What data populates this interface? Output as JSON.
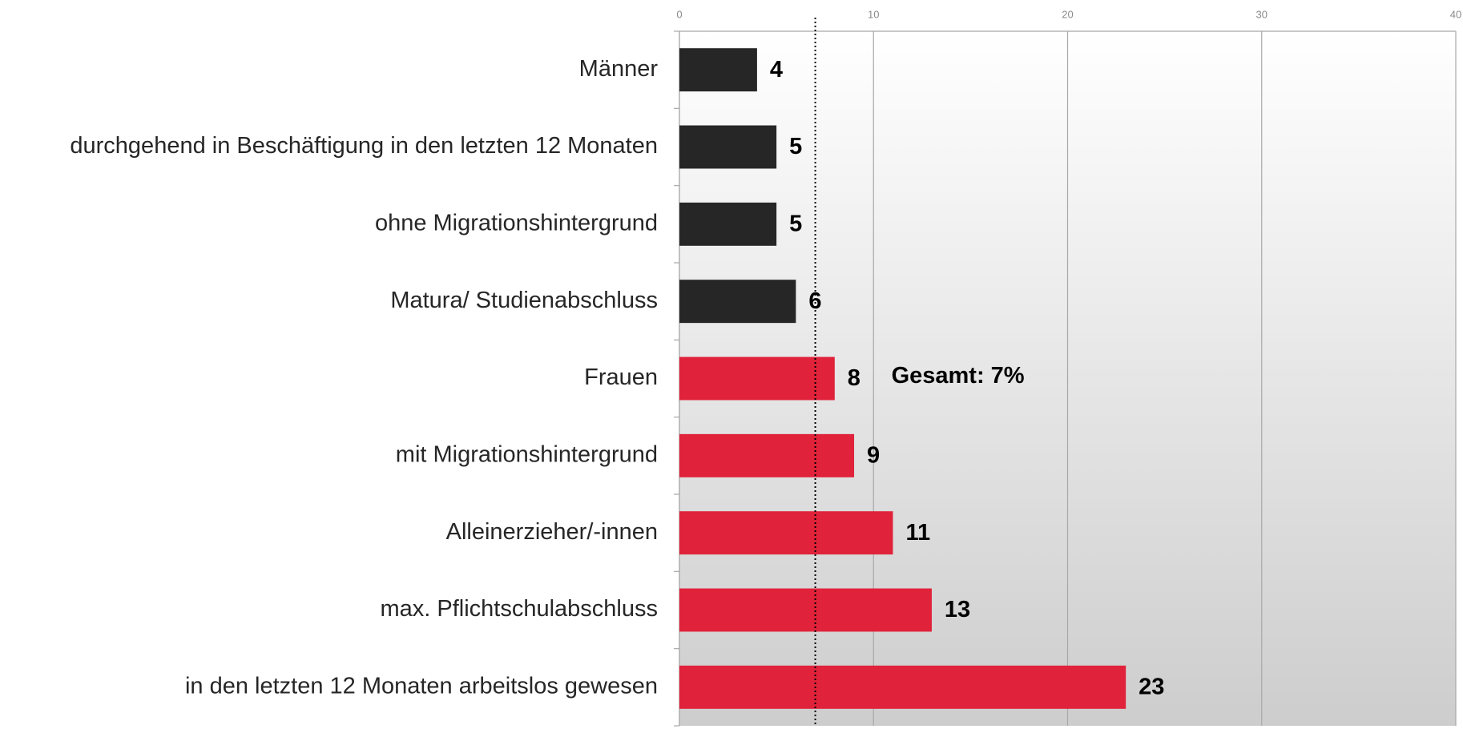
{
  "chart_data": {
    "type": "hbar",
    "categories": [
      "Männer",
      "durchgehend in Beschäftigung in den letzten 12 Monaten",
      "ohne Migrationshintergrund",
      "Matura/ Studienabschluss",
      "Frauen",
      "mit Migrationshintergrund",
      "Alleinerzieher/-innen",
      "max. Pflichtschulabschluss",
      "in den letzten 12 Monaten arbeitslos gewesen"
    ],
    "values": [
      4,
      5,
      5,
      6,
      8,
      9,
      11,
      13,
      23
    ],
    "colors": [
      "#262626",
      "#262626",
      "#262626",
      "#262626",
      "#e0223a",
      "#e0223a",
      "#e0223a",
      "#e0223a",
      "#e0223a"
    ],
    "xlim": [
      0,
      40
    ],
    "xticks": [
      0,
      10,
      20,
      30,
      40
    ],
    "grid": true,
    "reference_line": {
      "value": 7,
      "label": "Gesamt: 7%"
    }
  }
}
